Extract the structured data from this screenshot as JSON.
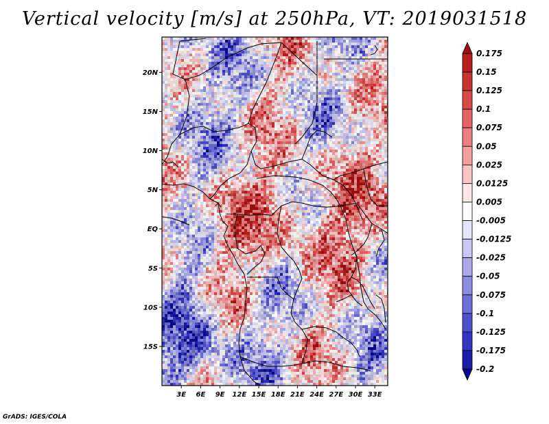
{
  "chart_data": {
    "type": "heatmap",
    "title": "Vertical velocity [m/s] at 250hPa, VT: 2019031518",
    "variable": "Vertical velocity",
    "units": "m/s",
    "level": "250hPa",
    "valid_time": "2019031518",
    "x_ticks": [
      "3E",
      "6E",
      "9E",
      "12E",
      "15E",
      "18E",
      "21E",
      "24E",
      "27E",
      "30E",
      "33E"
    ],
    "y_ticks": [
      "20N",
      "15N",
      "10N",
      "5N",
      "EQ",
      "5S",
      "10S",
      "15S"
    ],
    "xlim_deg_east": [
      0,
      35
    ],
    "ylim_deg_north": [
      -20,
      24.5
    ],
    "colorbar": {
      "levels": [
        "0.175",
        "0.15",
        "0.125",
        "0.1",
        "0.075",
        "0.05",
        "0.025",
        "0.0125",
        "0.005",
        "-0.005",
        "-0.0125",
        "-0.025",
        "-0.05",
        "-0.075",
        "-0.1",
        "-0.125",
        "-0.175",
        "-0.2"
      ],
      "colors": [
        "#a01010",
        "#b82020",
        "#c83434",
        "#d84a4a",
        "#e46464",
        "#ec8080",
        "#f4a0a0",
        "#f8c4c4",
        "#fde6e6",
        "#ffffff",
        "#e4e4f8",
        "#c8c8f2",
        "#aaaaea",
        "#8c8ce2",
        "#6e6ed8",
        "#5050cc",
        "#3434c0",
        "#1c1ca8",
        "#0a0a8c"
      ]
    }
  },
  "footer": "GrADS: IGES/COLA"
}
